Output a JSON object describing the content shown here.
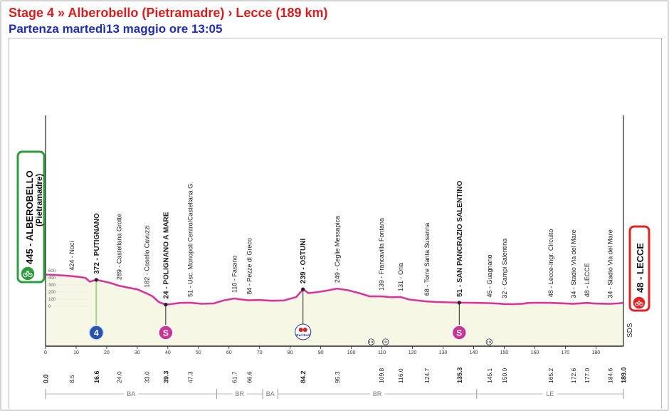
{
  "header": {
    "title": "Stage 4 » Alberobello (Pietramadre) › Lecce (189 km)",
    "subtitle": "Partenza martedì13 maggio ore 13:05"
  },
  "colors": {
    "profile_line": "#d6369e",
    "profile_fill": "#f7f7e6",
    "start_badge": "#2e9e3c",
    "finish_badge": "#e02424",
    "sprint_badge": "#c93497",
    "kom_badge": "#2b52a8",
    "title": "#d81e1e",
    "subtitle": "#1f2fb5"
  },
  "chart_data": {
    "type": "area",
    "title": "",
    "xlabel": "",
    "ylabel": "",
    "xlim": [
      0,
      189
    ],
    "ylim": [
      0,
      600
    ],
    "y_ticks": [
      "500",
      "400",
      "300",
      "200",
      "100",
      "0"
    ],
    "x_ticks": [
      "0",
      "10",
      "20",
      "30",
      "40",
      "50",
      "60",
      "70",
      "80",
      "90",
      "100",
      "110",
      "120",
      "130",
      "140",
      "150",
      "160",
      "170",
      "180"
    ],
    "profile": [
      [
        0,
        445
      ],
      [
        3,
        440
      ],
      [
        6,
        432
      ],
      [
        8.5,
        424
      ],
      [
        11,
        412
      ],
      [
        13,
        400
      ],
      [
        14.5,
        345
      ],
      [
        16.6,
        372
      ],
      [
        19,
        350
      ],
      [
        21,
        330
      ],
      [
        24,
        289
      ],
      [
        27,
        262
      ],
      [
        30,
        238
      ],
      [
        33,
        182
      ],
      [
        35,
        140
      ],
      [
        37,
        60
      ],
      [
        39.3,
        24
      ],
      [
        41,
        30
      ],
      [
        44,
        48
      ],
      [
        47.3,
        51
      ],
      [
        51,
        35
      ],
      [
        55,
        40
      ],
      [
        58,
        80
      ],
      [
        61.7,
        110
      ],
      [
        64,
        95
      ],
      [
        66.6,
        84
      ],
      [
        70,
        88
      ],
      [
        74,
        78
      ],
      [
        78,
        82
      ],
      [
        82,
        130
      ],
      [
        84.2,
        239
      ],
      [
        86,
        185
      ],
      [
        89,
        200
      ],
      [
        92,
        220
      ],
      [
        95.3,
        249
      ],
      [
        99,
        225
      ],
      [
        103,
        180
      ],
      [
        106,
        139
      ],
      [
        109.8,
        139
      ],
      [
        113,
        128
      ],
      [
        116,
        131
      ],
      [
        119,
        95
      ],
      [
        122,
        80
      ],
      [
        124.7,
        68
      ],
      [
        128,
        60
      ],
      [
        132,
        55
      ],
      [
        135.3,
        51
      ],
      [
        138,
        50
      ],
      [
        141,
        48
      ],
      [
        145.1,
        45
      ],
      [
        148,
        38
      ],
      [
        150,
        32
      ],
      [
        153,
        30
      ],
      [
        156,
        36
      ],
      [
        158,
        48
      ],
      [
        162,
        50
      ],
      [
        165.2,
        48
      ],
      [
        169,
        42
      ],
      [
        172.6,
        34
      ],
      [
        177,
        48
      ],
      [
        180,
        38
      ],
      [
        184.6,
        34
      ],
      [
        187,
        40
      ],
      [
        189,
        48
      ]
    ],
    "km_labels": [
      "0.0",
      "8.5",
      "16.6",
      "24.0",
      "33.0",
      "39.3",
      "47.3",
      "61.7",
      "66.6",
      "84.2",
      "95.3",
      "109.8",
      "116.0",
      "124.7",
      "135.3",
      "145.1",
      "150.0",
      "165.2",
      "172.6",
      "177.0",
      "184.6",
      "189.0"
    ],
    "waypoints": [
      {
        "km": 8.5,
        "label": "424 - Noci",
        "bold": false
      },
      {
        "km": 16.6,
        "label": "372 - PUTIGNANO",
        "bold": true
      },
      {
        "km": 24.0,
        "label": "289 - Castellana Grotte",
        "bold": false
      },
      {
        "km": 33.0,
        "label": "182 - Casello Cavuzzi",
        "bold": false
      },
      {
        "km": 39.3,
        "label": "24 - POLIGNANO A MARE",
        "bold": true
      },
      {
        "km": 47.3,
        "label": "51 - Usc. Monopoli Centro/Castellana G.",
        "bold": false
      },
      {
        "km": 61.7,
        "label": "110 - Fasano",
        "bold": false
      },
      {
        "km": 66.6,
        "label": "84 - Pezze di Greco",
        "bold": false
      },
      {
        "km": 84.2,
        "label": "239 - OSTUNI",
        "bold": true
      },
      {
        "km": 95.3,
        "label": "249 - Ceglie Messapica",
        "bold": false
      },
      {
        "km": 109.8,
        "label": "139 - Francavilla Fontana",
        "bold": false
      },
      {
        "km": 116.0,
        "label": "131 - Oria",
        "bold": false
      },
      {
        "km": 124.7,
        "label": "68 - Torre Santa Susanna",
        "bold": false
      },
      {
        "km": 135.3,
        "label": "51 - SAN PANCRAZIO SALENTINO",
        "bold": true
      },
      {
        "km": 145.1,
        "label": "45 - Guagnano",
        "bold": false
      },
      {
        "km": 150.0,
        "label": "32 - Campi Salentina",
        "bold": false
      },
      {
        "km": 165.2,
        "label": "48 - Lecce-Ingr. Circuito",
        "bold": false
      },
      {
        "km": 172.6,
        "label": "34 - Stadio Via del Mare",
        "bold": false
      },
      {
        "km": 177.0,
        "label": "48 - LECCE",
        "bold": false
      },
      {
        "km": 184.6,
        "label": "34 - Stadio Via del Mare",
        "bold": false
      }
    ],
    "start": {
      "km": 0,
      "label": "445 - ALBEROBELLO",
      "sublabel": "(Pietramadre)"
    },
    "finish": {
      "km": 189,
      "label": "48 - LECCE"
    },
    "markers": [
      {
        "km": 16.6,
        "type": "kom",
        "text": "4"
      },
      {
        "km": 39.3,
        "type": "sprint",
        "text": "S"
      },
      {
        "km": 84.2,
        "type": "redbull",
        "text": "Red Bull"
      },
      {
        "km": 135.3,
        "type": "sprint",
        "text": "S"
      }
    ],
    "roundabouts_km": [
      106.5,
      111.2,
      145.1
    ],
    "sds_label": "SDS",
    "provinces": [
      {
        "name": "BA",
        "from": 0,
        "to": 56
      },
      {
        "name": "BR",
        "from": 56,
        "to": 71
      },
      {
        "name": "BA",
        "from": 71,
        "to": 76
      },
      {
        "name": "BR",
        "from": 76,
        "to": 141
      },
      {
        "name": "LE",
        "from": 141,
        "to": 189
      }
    ]
  }
}
